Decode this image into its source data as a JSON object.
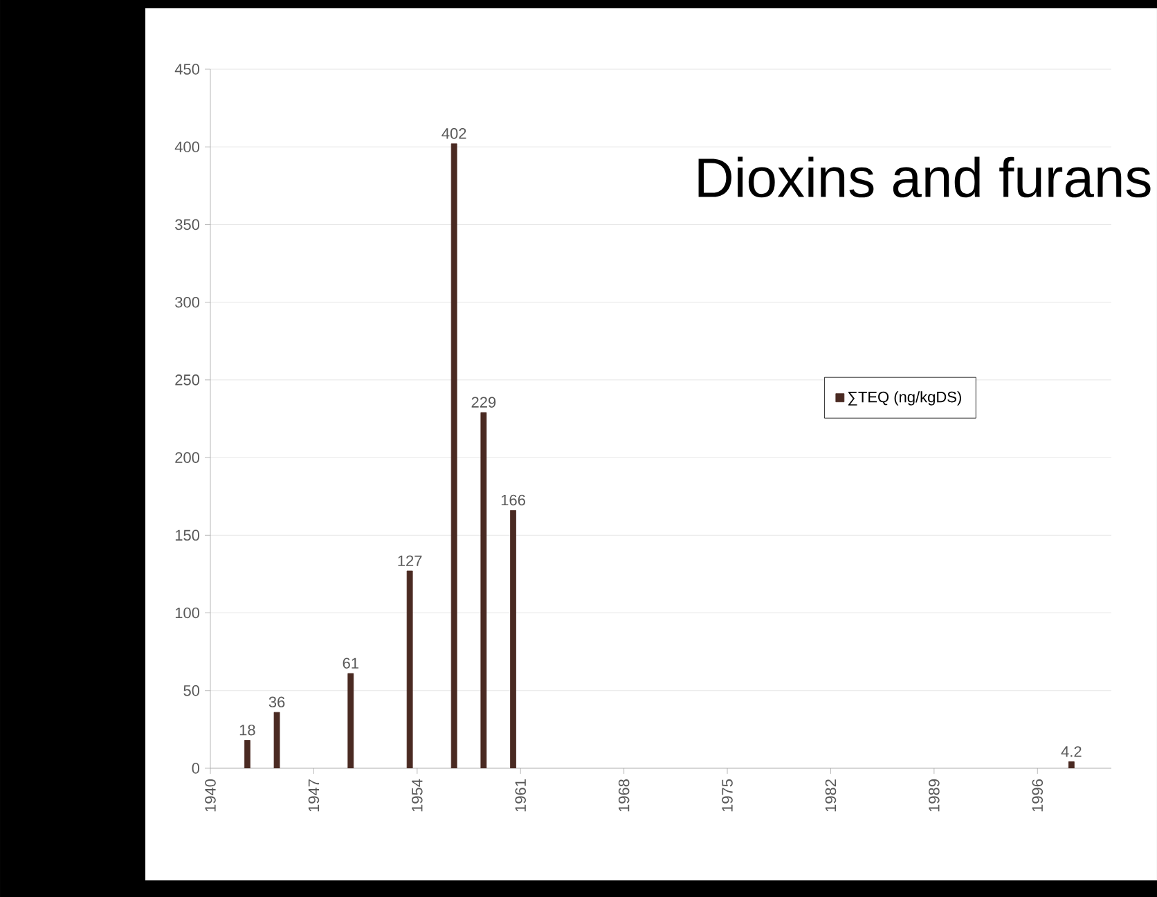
{
  "chart_data": {
    "type": "bar",
    "title": "Dioxins and furans",
    "x": [
      1942.5,
      1944.5,
      1949.5,
      1953.5,
      1956.5,
      1958.5,
      1960.5,
      1998.3
    ],
    "series": [
      {
        "name": "∑TEQ (ng/kgDS)",
        "color": "#4a2a22",
        "values": [
          18,
          36,
          61,
          127,
          402,
          229,
          166,
          4.2
        ]
      }
    ],
    "xlim": [
      1940,
      2001
    ],
    "xticks": [
      1940,
      1947,
      1954,
      1961,
      1968,
      1975,
      1982,
      1989,
      1996
    ],
    "ylim": [
      0,
      450
    ],
    "yticks": [
      0,
      50,
      100,
      150,
      200,
      250,
      300,
      350,
      400,
      450
    ],
    "grid": "y",
    "legend": "right",
    "data_labels": true
  }
}
